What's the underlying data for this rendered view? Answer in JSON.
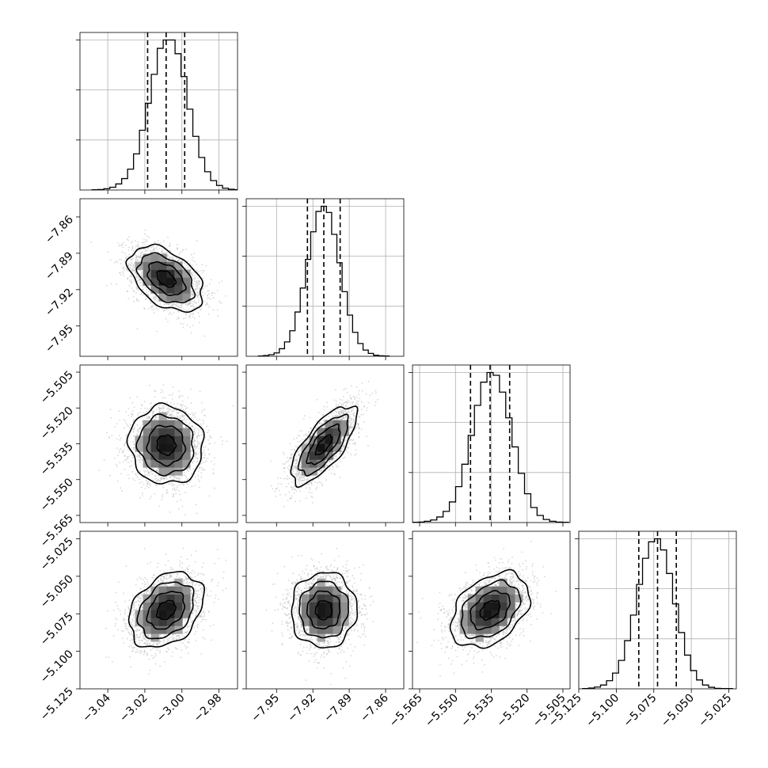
{
  "chart_data": {
    "type": "corner",
    "title": "",
    "quantiles": [
      0.16,
      0.5,
      0.84
    ],
    "contour_color": "#000000",
    "point_color": "#bdbdbd",
    "parameters": [
      {
        "index": 0,
        "range": [
          -3.055,
          -2.97
        ],
        "ticks": [
          -3.04,
          -3.02,
          -3.0,
          -2.98
        ],
        "tick_labels": [
          "−3.04",
          "−3.02",
          "−3.00",
          "−2.98"
        ],
        "mean": -3.0085,
        "std": 0.01,
        "quantile_values": [
          -3.0185,
          -3.0085,
          -2.9985
        ],
        "hist_counts": [
          1,
          2,
          5,
          11,
          24,
          45,
          82,
          142,
          235,
          341,
          455,
          557,
          590,
          590,
          536,
          446,
          318,
          211,
          128,
          72,
          37,
          18,
          7,
          3,
          1
        ]
      },
      {
        "index": 1,
        "range": [
          -7.975,
          -7.845
        ],
        "ticks": [
          -7.95,
          -7.92,
          -7.89,
          -7.86
        ],
        "tick_labels": [
          "−7.95",
          "−7.92",
          "−7.89",
          "−7.86"
        ],
        "mean": -7.911,
        "std": 0.0135,
        "quantile_values": [
          -7.9245,
          -7.911,
          -7.8975
        ],
        "hist_counts": [
          1,
          3,
          6,
          13,
          29,
          55,
          98,
          170,
          262,
          372,
          478,
          556,
          576,
          552,
          468,
          359,
          248,
          158,
          92,
          49,
          24,
          11,
          4,
          2,
          1
        ]
      },
      {
        "index": 2,
        "range": [
          -5.568,
          -5.502
        ],
        "ticks": [
          -5.565,
          -5.55,
          -5.535,
          -5.52,
          -5.505
        ],
        "tick_labels": [
          "−5.565",
          "−5.550",
          "−5.535",
          "−5.520",
          "−5.505"
        ],
        "mean": -5.5355,
        "std": 0.0082,
        "quantile_values": [
          -5.5437,
          -5.5355,
          -5.5273
        ],
        "hist_counts": [
          1,
          2,
          5,
          10,
          22,
          44,
          81,
          141,
          229,
          342,
          460,
          551,
          589,
          578,
          512,
          411,
          297,
          193,
          113,
          59,
          28,
          12,
          5,
          2,
          1
        ]
      },
      {
        "index": 3,
        "range": [
          -5.125,
          -5.02
        ],
        "ticks": [
          -5.125,
          -5.1,
          -5.075,
          -5.05,
          -5.025
        ],
        "tick_labels": [
          "−5.125",
          "−5.100",
          "−5.075",
          "−5.050",
          "−5.025"
        ],
        "mean": -5.0725,
        "std": 0.0125,
        "quantile_values": [
          -5.085,
          -5.0725,
          -5.06
        ],
        "hist_counts": [
          1,
          3,
          7,
          15,
          32,
          62,
          112,
          190,
          291,
          412,
          515,
          580,
          592,
          548,
          455,
          335,
          222,
          133,
          72,
          35,
          15,
          6,
          2,
          1,
          1
        ]
      }
    ],
    "correlations": {
      "1-0": -0.45,
      "2-0": -0.05,
      "2-1": 0.72,
      "3-0": 0.32,
      "3-1": 0.02,
      "3-2": 0.38
    },
    "contour_levels": [
      0.5,
      1.0,
      1.5,
      2.0
    ]
  }
}
